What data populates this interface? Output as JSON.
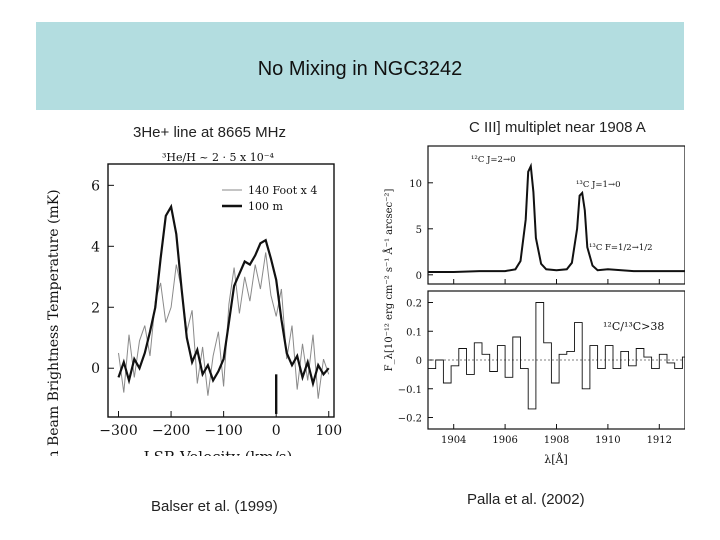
{
  "slide": {
    "title": "No Mixing in NGC3242",
    "left_caption_top": "3He+ line at 8665 MHz",
    "left_citation": "Balser et al. (1999)",
    "right_caption_top": "C III] multiplet near 1908 A",
    "right_citation": "Palla et al. (2002)"
  },
  "chart_data": [
    {
      "type": "line",
      "title": "",
      "annotation": "³He/H ~ 2 · 5 x 10⁻⁴",
      "xlabel": "LSR Velocity (km/s)",
      "ylabel": "Main Beam Brightness Temperature (mK)",
      "xlim": [
        -320,
        110
      ],
      "ylim": [
        -1.6,
        6.7
      ],
      "xticks": [
        -300,
        -200,
        -100,
        0,
        100
      ],
      "yticks": [
        0,
        2,
        4,
        6
      ],
      "legend": [
        "140 Foot x 4",
        "100 m"
      ],
      "legend_position": "top-right",
      "marker_vline_x": 0,
      "series": [
        {
          "name": "100 m",
          "x": [
            -300,
            -290,
            -280,
            -270,
            -260,
            -250,
            -240,
            -230,
            -220,
            -210,
            -200,
            -190,
            -180,
            -170,
            -160,
            -150,
            -140,
            -130,
            -120,
            -110,
            -100,
            -90,
            -80,
            -70,
            -60,
            -50,
            -40,
            -30,
            -20,
            -10,
            0,
            10,
            20,
            30,
            40,
            50,
            60,
            70,
            80,
            90,
            100
          ],
          "y": [
            -0.3,
            0.2,
            -0.4,
            0.3,
            0.0,
            0.5,
            1.2,
            2.0,
            3.6,
            5.0,
            5.3,
            4.4,
            2.6,
            1.0,
            0.2,
            0.6,
            -0.2,
            0.1,
            -0.4,
            -0.1,
            0.3,
            1.5,
            2.7,
            3.1,
            3.5,
            3.4,
            3.7,
            4.1,
            4.2,
            3.6,
            2.9,
            1.6,
            0.5,
            0.1,
            0.4,
            -0.3,
            0.2,
            -0.5,
            0.1,
            -0.2,
            0.0
          ]
        },
        {
          "name": "140 Foot x 4",
          "x": [
            -300,
            -290,
            -280,
            -270,
            -260,
            -250,
            -240,
            -230,
            -220,
            -210,
            -200,
            -190,
            -180,
            -170,
            -160,
            -150,
            -140,
            -130,
            -120,
            -110,
            -100,
            -90,
            -80,
            -70,
            -60,
            -50,
            -40,
            -30,
            -20,
            -10,
            0,
            10,
            20,
            30,
            40,
            50,
            60,
            70,
            80,
            90,
            100
          ],
          "y": [
            0.5,
            -0.8,
            1.1,
            -0.3,
            0.9,
            1.4,
            0.4,
            2.2,
            2.8,
            1.5,
            2.0,
            3.4,
            2.6,
            1.2,
            1.9,
            -0.5,
            0.7,
            -0.9,
            0.4,
            1.2,
            -0.6,
            2.1,
            3.3,
            1.8,
            3.0,
            2.2,
            3.4,
            2.6,
            3.8,
            2.4,
            1.7,
            2.6,
            0.3,
            1.4,
            -0.7,
            0.8,
            -0.4,
            1.1,
            -1.0,
            0.3,
            -0.2
          ]
        }
      ]
    },
    {
      "type": "line",
      "title": "",
      "xlabel": "λ[Å]",
      "ylabel": "F_λ[10⁻¹² erg cm⁻² s⁻¹ Å⁻¹ arcsec⁻²]",
      "xlim": [
        1903.0,
        1913.0
      ],
      "xticks": [
        1904,
        1906,
        1908,
        1910,
        1912
      ],
      "panels": [
        {
          "name": "spectrum",
          "ylim": [
            -1.0,
            14.0
          ],
          "yticks": [
            0,
            5,
            10
          ],
          "annotations": [
            "¹²C J=2→0",
            "¹³C J=1→0",
            "¹³C F=1/2→1/2"
          ],
          "x": [
            1903.0,
            1904.0,
            1905.0,
            1906.0,
            1906.4,
            1906.6,
            1906.8,
            1906.9,
            1907.0,
            1907.1,
            1907.2,
            1907.4,
            1907.6,
            1908.0,
            1908.4,
            1908.6,
            1908.8,
            1908.9,
            1909.0,
            1909.1,
            1909.2,
            1909.4,
            1909.6,
            1910.0,
            1911.0,
            1912.0,
            1913.0
          ],
          "y": [
            0.3,
            0.3,
            0.4,
            0.4,
            0.6,
            1.5,
            6.0,
            11.2,
            11.8,
            9.0,
            4.0,
            1.2,
            0.6,
            0.5,
            0.6,
            1.3,
            5.0,
            8.6,
            8.9,
            7.0,
            3.0,
            1.0,
            0.5,
            0.6,
            0.4,
            0.4,
            0.4
          ]
        },
        {
          "name": "residuals",
          "ylim": [
            -0.24,
            0.24
          ],
          "yticks": [
            -0.2,
            -0.1,
            0,
            0.1,
            0.2
          ],
          "annotation": "¹²C/¹³C>38",
          "x": [
            1903.0,
            1903.3,
            1903.6,
            1903.9,
            1904.2,
            1904.5,
            1904.8,
            1905.1,
            1905.4,
            1905.7,
            1906.0,
            1906.3,
            1906.6,
            1906.9,
            1907.2,
            1907.5,
            1907.8,
            1908.1,
            1908.4,
            1908.7,
            1909.0,
            1909.3,
            1909.6,
            1909.9,
            1910.2,
            1910.5,
            1910.8,
            1911.1,
            1911.4,
            1911.7,
            1912.0,
            1912.3,
            1912.6,
            1912.9
          ],
          "y": [
            -0.03,
            0.0,
            -0.08,
            -0.02,
            0.04,
            -0.05,
            0.06,
            0.02,
            -0.04,
            0.05,
            -0.06,
            0.08,
            -0.03,
            -0.17,
            0.2,
            0.06,
            -0.08,
            0.02,
            0.03,
            0.13,
            -0.1,
            0.05,
            -0.03,
            0.05,
            -0.03,
            0.03,
            -0.02,
            0.04,
            0.01,
            -0.03,
            0.02,
            -0.01,
            -0.03,
            0.01
          ]
        }
      ]
    }
  ]
}
